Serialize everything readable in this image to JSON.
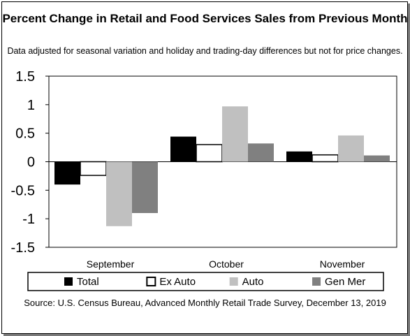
{
  "chart_data": {
    "type": "bar",
    "title": "Percent Change in Retail and Food Services Sales from Previous Month",
    "subtitle": "Data adjusted for seasonal variation and holiday and trading-day differences but not for price changes.",
    "source": "Source: U.S. Census Bureau, Advanced Monthly Retail Trade Survey, December 13, 2019",
    "categories": [
      "September",
      "October",
      "November"
    ],
    "series": [
      {
        "name": "Total",
        "values": [
          -0.4,
          0.44,
          0.18
        ],
        "color": "#000000"
      },
      {
        "name": "Ex Auto",
        "values": [
          -0.24,
          0.3,
          0.12
        ],
        "color": "#ffffff"
      },
      {
        "name": "Auto",
        "values": [
          -1.13,
          0.97,
          0.46
        ],
        "color": "#c0c0c0"
      },
      {
        "name": "Gen Mer",
        "values": [
          -0.9,
          0.32,
          0.11
        ],
        "color": "#808080"
      }
    ],
    "ylim": [
      -1.5,
      1.5
    ],
    "yticks": [
      "1.5",
      "1",
      "0.5",
      "0",
      "-0.5",
      "-1",
      "-1.5"
    ],
    "ytick_values": [
      1.5,
      1,
      0.5,
      0,
      -0.5,
      -1,
      -1.5
    ],
    "xlabel": "",
    "ylabel": "",
    "grid": false,
    "legend_position": "bottom"
  }
}
